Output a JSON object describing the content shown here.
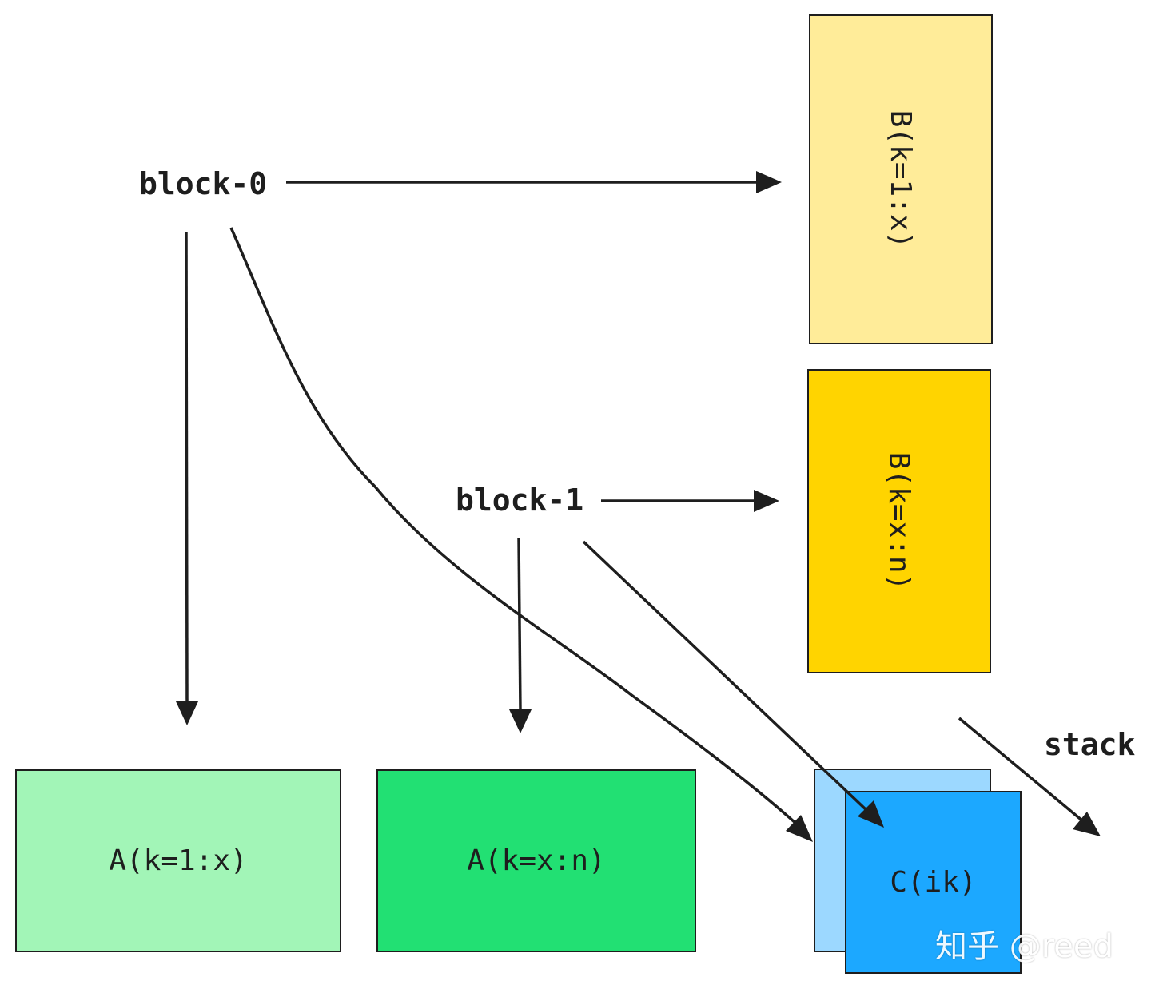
{
  "labels": {
    "block0": "block-0",
    "block1": "block-1",
    "stack": "stack"
  },
  "boxes": {
    "b_first": {
      "text": "B(k=1:x)",
      "fill": "#ffec99"
    },
    "b_second": {
      "text": "B(k=x:n)",
      "fill": "#ffd400"
    },
    "a_first": {
      "text": "A(k=1:x)",
      "fill": "#a2f5b7"
    },
    "a_second": {
      "text": "A(k=x:n)",
      "fill": "#22e073"
    },
    "c_back": {
      "text": "",
      "fill": "#9cd8ff"
    },
    "c_front": {
      "text": "C(ik)",
      "fill": "#1ca8ff"
    }
  },
  "watermark": "知乎 @reed",
  "colors": {
    "stroke": "#1e1e1e",
    "background": "#ffffff"
  }
}
